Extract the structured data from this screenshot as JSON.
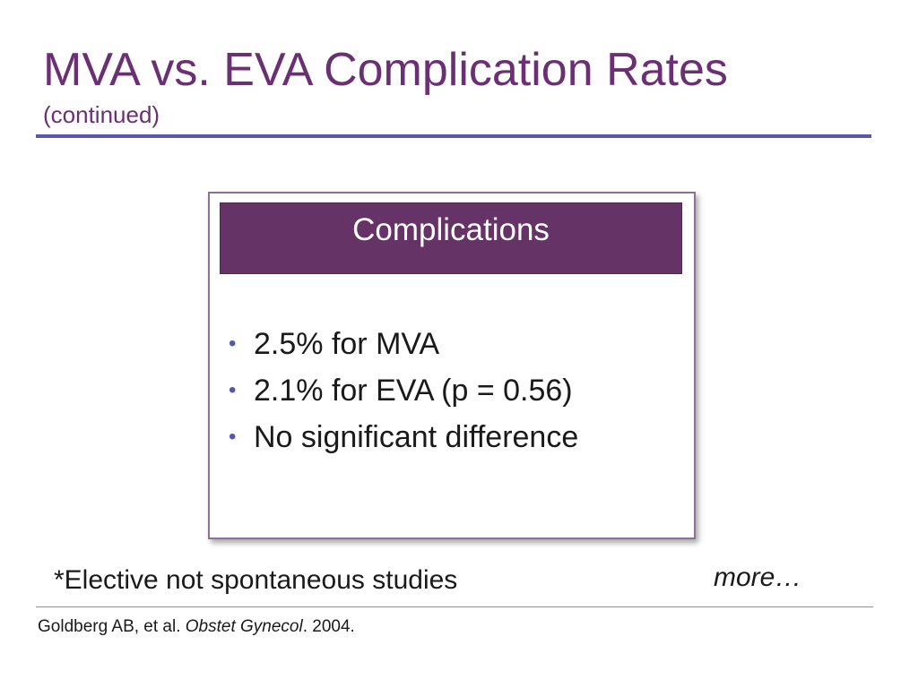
{
  "slide": {
    "title": "MVA vs. EVA Complication Rates",
    "subtitle": "(continued)",
    "colors": {
      "title": "#6b2f73",
      "rule": "#5a58a8",
      "header_fill": "#663366",
      "bullet": "#4f59a8"
    }
  },
  "panel": {
    "header": "Complications",
    "bullets": [
      "2.5% for MVA",
      "2.1% for EVA (p = 0.56)",
      "No significant difference"
    ]
  },
  "footnote": "*Elective not spontaneous studies",
  "more": "more…",
  "citation": {
    "authors": "Goldberg AB, et al. ",
    "journal": "Obstet Gynecol",
    "year": ". 2004."
  }
}
